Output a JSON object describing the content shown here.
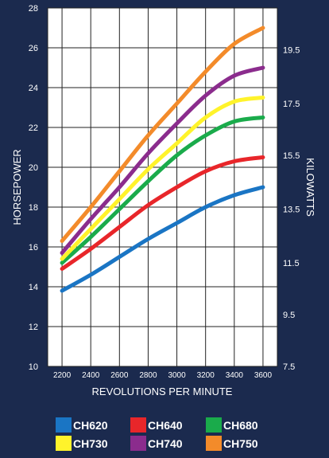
{
  "chart_data": {
    "type": "line",
    "xlabel": "REVOLUTIONS PER MINUTE",
    "ylabel": "HORSEPOWER",
    "y2label": "KILOWATTS",
    "xlim": [
      2100,
      3700
    ],
    "ylim": [
      10,
      28
    ],
    "x_ticks": [
      "2200",
      "2400",
      "2600",
      "2800",
      "3000",
      "3200",
      "3400",
      "3600"
    ],
    "y_ticks": [
      "10",
      "12",
      "14",
      "16",
      "18",
      "20",
      "22",
      "24",
      "26",
      "28"
    ],
    "y2_ticks": [
      {
        "label": "7.5",
        "hp": 10
      },
      {
        "label": "9.5",
        "hp": 12.6
      },
      {
        "label": "11.5",
        "hp": 15.2
      },
      {
        "label": "13.5",
        "hp": 17.9
      },
      {
        "label": "15.5",
        "hp": 20.6
      },
      {
        "label": "17.5",
        "hp": 23.2
      },
      {
        "label": "19.5",
        "hp": 25.9
      }
    ],
    "grid": true,
    "legend_position": "bottom",
    "x": [
      2200,
      2400,
      2600,
      2800,
      3000,
      3200,
      3400,
      3600
    ],
    "series": [
      {
        "name": "CH620",
        "color": "#1a75c4",
        "values": [
          13.8,
          14.6,
          15.5,
          16.4,
          17.2,
          18.0,
          18.6,
          19.0
        ]
      },
      {
        "name": "CH640",
        "color": "#e8262a",
        "values": [
          14.9,
          15.9,
          17.0,
          18.1,
          19.0,
          19.8,
          20.3,
          20.5
        ]
      },
      {
        "name": "CH680",
        "color": "#1aab4b",
        "values": [
          15.2,
          16.5,
          17.9,
          19.3,
          20.6,
          21.6,
          22.3,
          22.5
        ]
      },
      {
        "name": "CH730",
        "color": "#fff32b",
        "values": [
          15.4,
          16.9,
          18.4,
          19.9,
          21.2,
          22.5,
          23.3,
          23.5
        ]
      },
      {
        "name": "CH740",
        "color": "#8b2c8d",
        "values": [
          15.7,
          17.4,
          19.0,
          20.7,
          22.2,
          23.6,
          24.6,
          25.0
        ]
      },
      {
        "name": "CH750",
        "color": "#f38b2a",
        "values": [
          16.3,
          18.0,
          19.8,
          21.6,
          23.2,
          24.8,
          26.2,
          27.0
        ]
      }
    ]
  }
}
